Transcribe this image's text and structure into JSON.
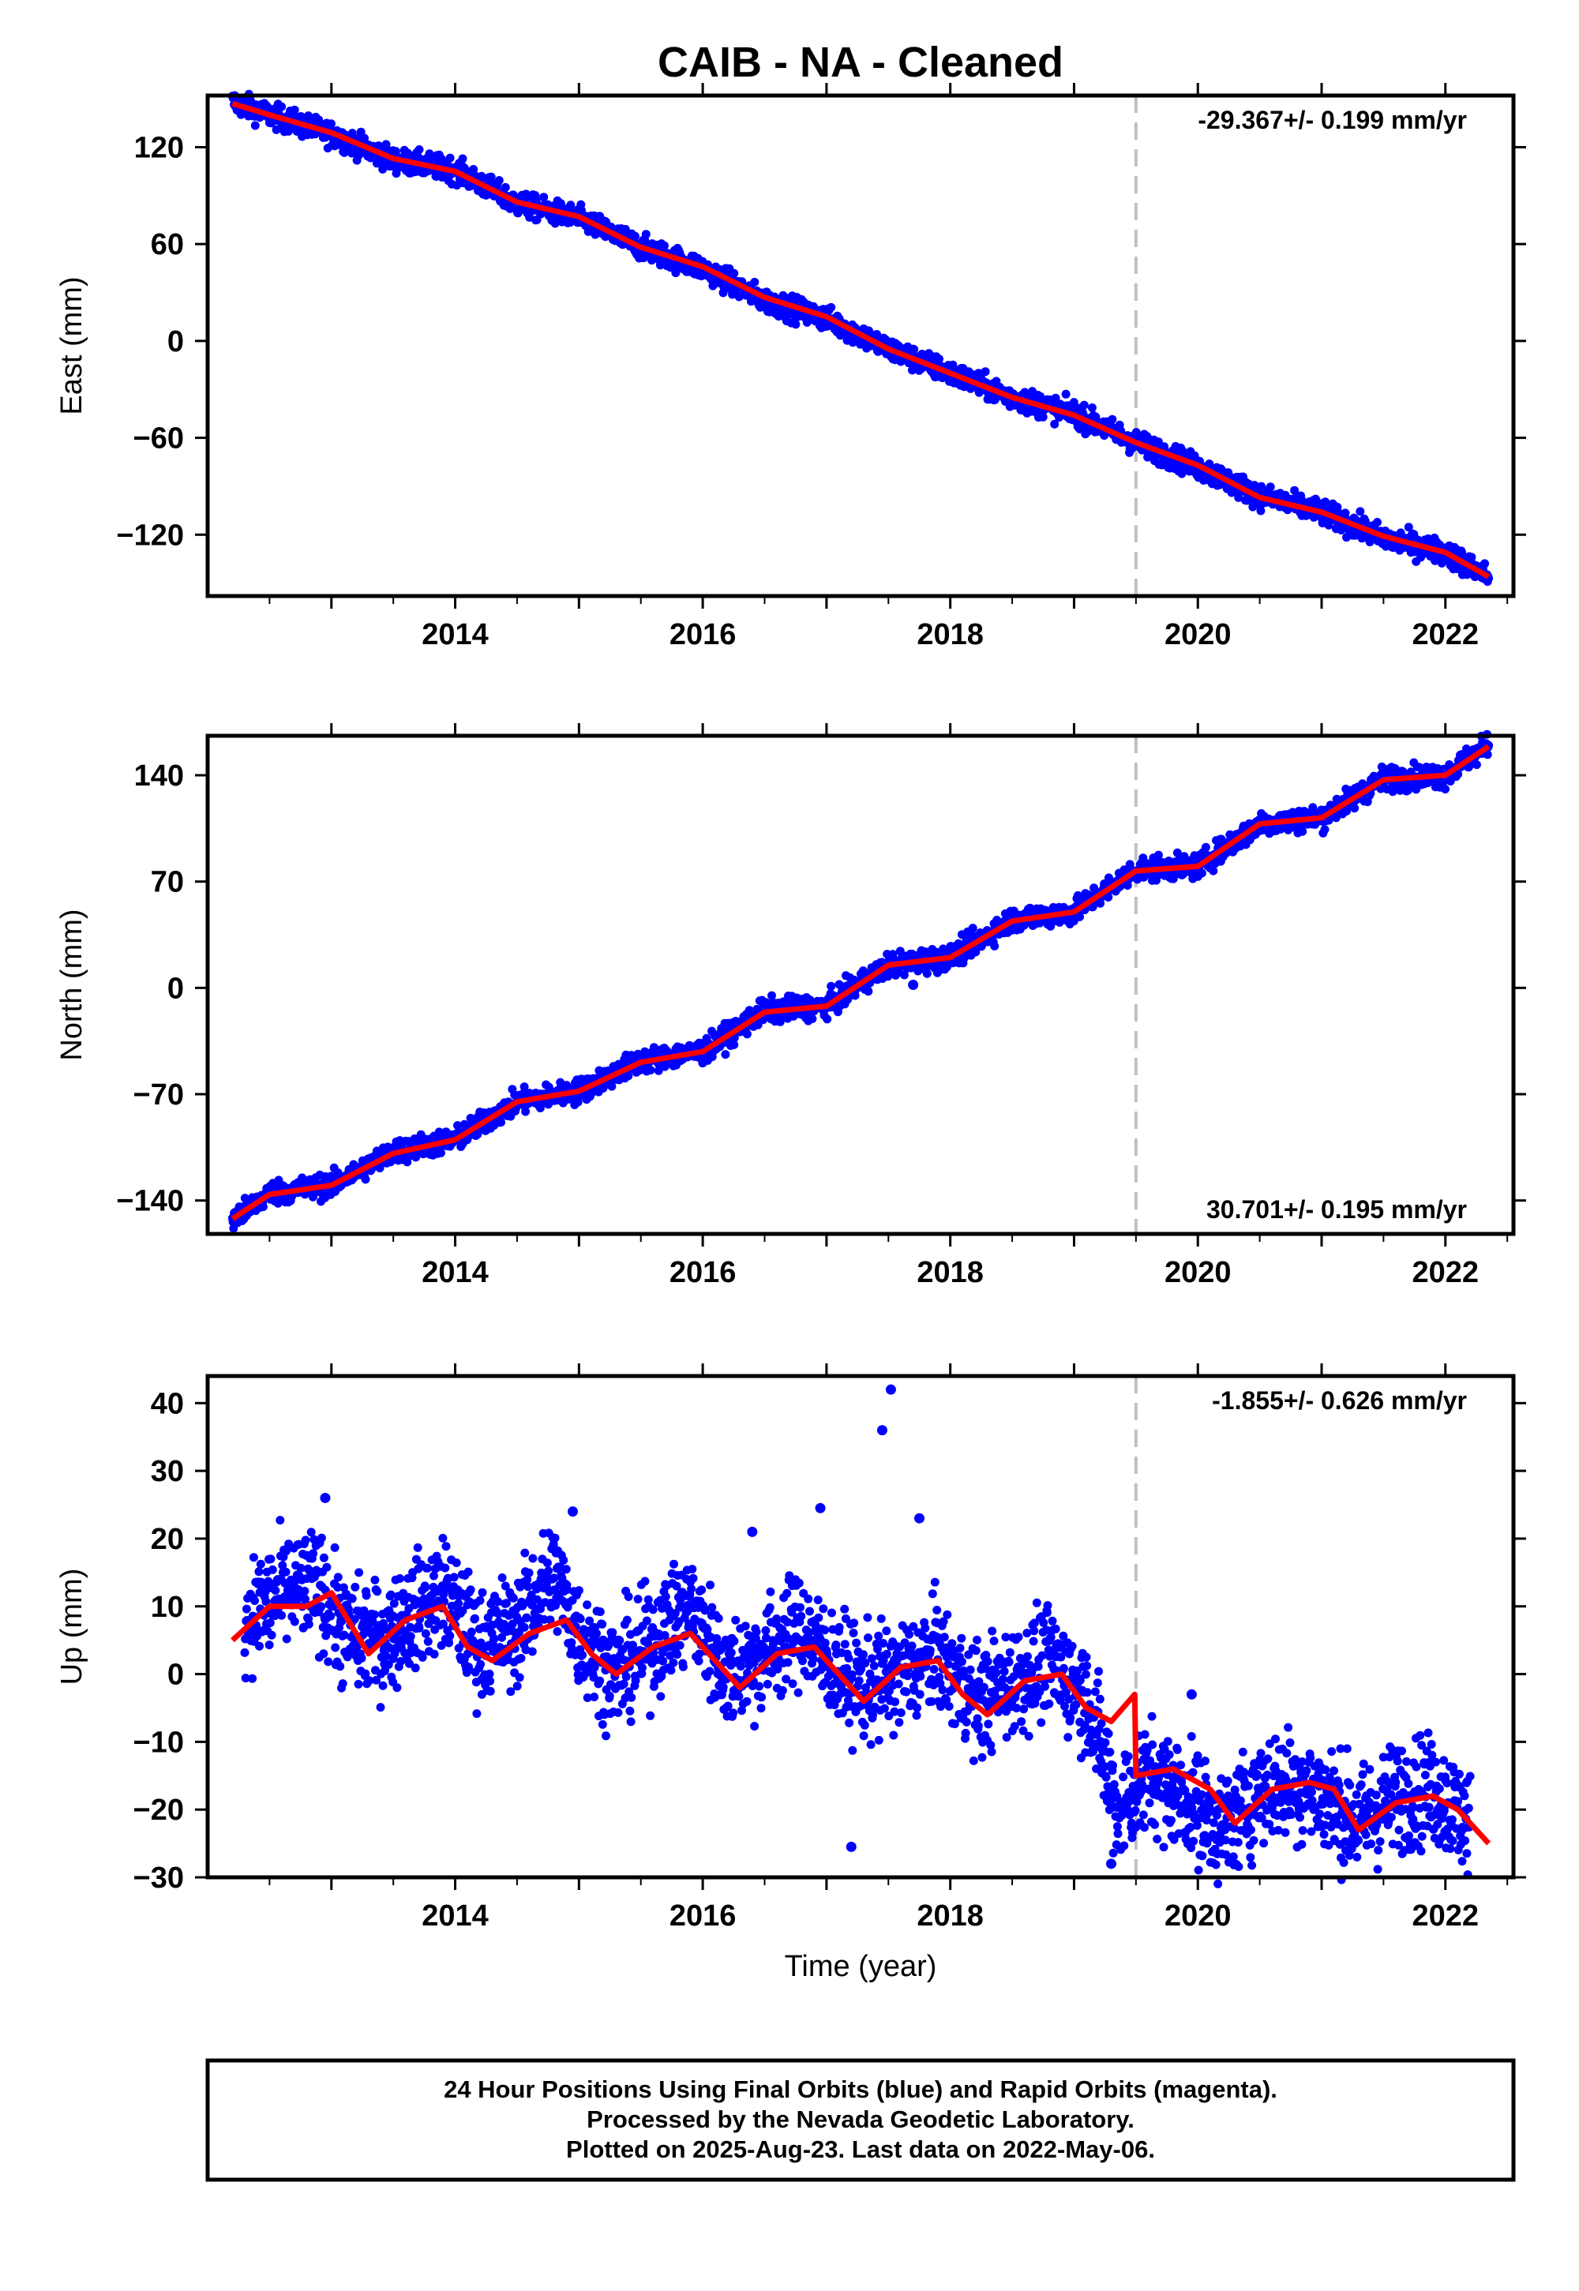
{
  "title": "CAIB  - NA - Cleaned",
  "colors": {
    "final_orbits": "#0000ff",
    "model": "#ff0000",
    "frame": "#000000",
    "marker_line": "#c0c0c0"
  },
  "footer": {
    "line1": "24 Hour Positions Using Final Orbits (blue) and Rapid Orbits (magenta).",
    "line2": "Processed by the Nevada Geodetic Laboratory.",
    "line3": "Plotted on 2025-Aug-23. Last data on 2022-May-06."
  },
  "chart_data": [
    {
      "type": "scatter",
      "ylabel": "East (mm)",
      "xlabel": "",
      "rate_label": "-29.367+/- 0.199 mm/yr",
      "rate_position": "top-right",
      "xlim": [
        2012.0,
        2022.55
      ],
      "ylim": [
        -158,
        152
      ],
      "xticks": [
        2014,
        2016,
        2018,
        2020,
        2022
      ],
      "xtick_labels": [
        "2014",
        "2016",
        "2018",
        "2020",
        "2022"
      ],
      "yticks": [
        120,
        60,
        0,
        -60,
        -120
      ],
      "ytick_labels": [
        "120",
        "60",
        "0",
        "−60",
        "−120"
      ],
      "event_line_x": 2019.5,
      "series": [
        {
          "kind": "points",
          "x": [
            2012.2,
            2012.5,
            2013.0,
            2013.5,
            2014.0,
            2014.5,
            2015.0,
            2015.5,
            2016.0,
            2016.5,
            2017.0,
            2017.5,
            2018.0,
            2018.5,
            2019.0,
            2019.5,
            2020.0,
            2020.5,
            2021.0,
            2021.5,
            2022.0,
            2022.35
          ],
          "y": [
            148,
            140,
            128,
            112,
            106,
            85,
            76,
            58,
            45,
            25,
            14,
            -5,
            -20,
            -35,
            -45,
            -63,
            -78,
            -96,
            -106,
            -122,
            -131,
            -146
          ]
        },
        {
          "kind": "points",
          "x": [
            2017.3,
            2017.6
          ],
          "y": [
            7,
            -5
          ]
        },
        {
          "kind": "model",
          "x": [
            2012.2,
            2012.5,
            2013.0,
            2013.5,
            2014.0,
            2014.5,
            2015.0,
            2015.5,
            2016.0,
            2016.5,
            2017.0,
            2017.5,
            2018.0,
            2018.5,
            2019.0,
            2019.5,
            2020.0,
            2020.5,
            2021.0,
            2021.5,
            2022.0,
            2022.35
          ],
          "y": [
            147,
            140,
            129,
            113,
            105,
            86,
            77,
            58,
            46,
            27,
            15,
            -5,
            -20,
            -35,
            -46,
            -63,
            -77,
            -97,
            -106,
            -121,
            -131,
            -146
          ]
        }
      ]
    },
    {
      "type": "scatter",
      "ylabel": "North (mm)",
      "xlabel": "",
      "rate_label": "30.701+/- 0.195 mm/yr",
      "rate_position": "bottom-right",
      "xlim": [
        2012.0,
        2022.55
      ],
      "ylim": [
        -162,
        166
      ],
      "xticks": [
        2014,
        2016,
        2018,
        2020,
        2022
      ],
      "xtick_labels": [
        "2014",
        "2016",
        "2018",
        "2020",
        "2022"
      ],
      "yticks": [
        140,
        70,
        0,
        -70,
        -140
      ],
      "ytick_labels": [
        "140",
        "70",
        "0",
        "−70",
        "−140"
      ],
      "event_line_x": 2019.5,
      "series": [
        {
          "kind": "points",
          "x": [
            2012.2,
            2012.5,
            2013.0,
            2013.5,
            2014.0,
            2014.5,
            2015.0,
            2015.5,
            2016.0,
            2016.5,
            2017.0,
            2017.5,
            2018.0,
            2018.5,
            2019.0,
            2019.5,
            2020.0,
            2020.5,
            2021.0,
            2021.5,
            2022.0,
            2022.35
          ],
          "y": [
            -153,
            -135,
            -130,
            -108,
            -100,
            -75,
            -68,
            -48,
            -42,
            -15,
            -12,
            15,
            20,
            45,
            50,
            78,
            80,
            108,
            112,
            138,
            140,
            160
          ]
        },
        {
          "kind": "points",
          "x": [
            2017.7
          ],
          "y": [
            2
          ]
        },
        {
          "kind": "model",
          "x": [
            2012.2,
            2012.5,
            2013.0,
            2013.5,
            2014.0,
            2014.5,
            2015.0,
            2015.5,
            2016.0,
            2016.5,
            2017.0,
            2017.5,
            2018.0,
            2018.5,
            2019.0,
            2019.5,
            2020.0,
            2020.5,
            2021.0,
            2021.5,
            2022.0,
            2022.35
          ],
          "y": [
            -152,
            -136,
            -130,
            -109,
            -100,
            -75,
            -68,
            -49,
            -42,
            -16,
            -12,
            15,
            20,
            44,
            50,
            77,
            80,
            108,
            112,
            137,
            140,
            159
          ]
        }
      ]
    },
    {
      "type": "scatter",
      "ylabel": "Up (mm)",
      "xlabel": "Time (year)",
      "rate_label": "-1.855+/- 0.626 mm/yr",
      "rate_position": "top-right",
      "xlim": [
        2012.0,
        2022.55
      ],
      "ylim": [
        -30,
        44
      ],
      "xticks": [
        2014,
        2016,
        2018,
        2020,
        2022
      ],
      "xtick_labels": [
        "2014",
        "2016",
        "2018",
        "2020",
        "2022"
      ],
      "yticks": [
        40,
        30,
        20,
        10,
        0,
        -10,
        -20,
        -30
      ],
      "ytick_labels": [
        "40",
        "30",
        "20",
        "10",
        "0",
        "−10",
        "−20",
        "−30"
      ],
      "event_line_x": 2019.5,
      "series": [
        {
          "kind": "points",
          "x": [
            2012.3,
            2012.6,
            2012.9,
            2013.1,
            2013.4,
            2013.6,
            2013.9,
            2014.2,
            2014.5,
            2014.8,
            2015.0,
            2015.3,
            2015.6,
            2015.9,
            2016.2,
            2016.5,
            2016.8,
            2017.0,
            2017.3,
            2017.6,
            2017.9,
            2018.2,
            2018.5,
            2018.8,
            2019.1,
            2019.35,
            2019.6,
            2019.9,
            2020.2,
            2020.5,
            2020.8,
            2021.0,
            2021.3,
            2021.6,
            2021.9,
            2022.2
          ],
          "y": [
            8,
            12,
            13,
            6,
            5,
            8,
            12,
            4,
            7,
            15,
            6,
            0,
            5,
            10,
            0,
            3,
            7,
            2,
            -2,
            0,
            3,
            -4,
            -1,
            2,
            -3,
            -20,
            -15,
            -18,
            -23,
            -17,
            -16,
            -18,
            -22,
            -18,
            -17,
            -22
          ]
        },
        {
          "kind": "points",
          "x": [
            2012.95,
            2014.95,
            2016.4,
            2016.95,
            2017.45,
            2017.52,
            2017.75,
            2017.2,
            2019.3,
            2019.95
          ],
          "y": [
            26,
            24,
            21,
            24.5,
            36,
            42,
            23,
            -25.5,
            -28,
            -3
          ]
        },
        {
          "kind": "model",
          "x": [
            2012.2,
            2012.5,
            2012.8,
            2013.0,
            2013.3,
            2013.6,
            2013.9,
            2014.1,
            2014.3,
            2014.6,
            2014.9,
            2015.1,
            2015.3,
            2015.6,
            2015.9,
            2016.1,
            2016.3,
            2016.6,
            2016.9,
            2017.1,
            2017.3,
            2017.6,
            2017.9,
            2018.1,
            2018.3,
            2018.6,
            2018.9,
            2019.1,
            2019.3,
            2019.49,
            2019.5,
            2019.8,
            2020.1,
            2020.3,
            2020.6,
            2020.9,
            2021.1,
            2021.3,
            2021.6,
            2021.9,
            2022.1,
            2022.35
          ],
          "y": [
            5,
            10,
            10,
            12,
            3,
            8,
            10,
            4,
            2,
            6,
            8,
            3,
            0,
            4,
            6,
            2,
            -2,
            3,
            4,
            0,
            -4,
            1,
            2,
            -3,
            -6,
            -1,
            0,
            -5,
            -7,
            -3,
            -15,
            -14,
            -17,
            -22,
            -17,
            -16,
            -17,
            -23,
            -19,
            -18,
            -20,
            -25
          ]
        }
      ]
    }
  ]
}
